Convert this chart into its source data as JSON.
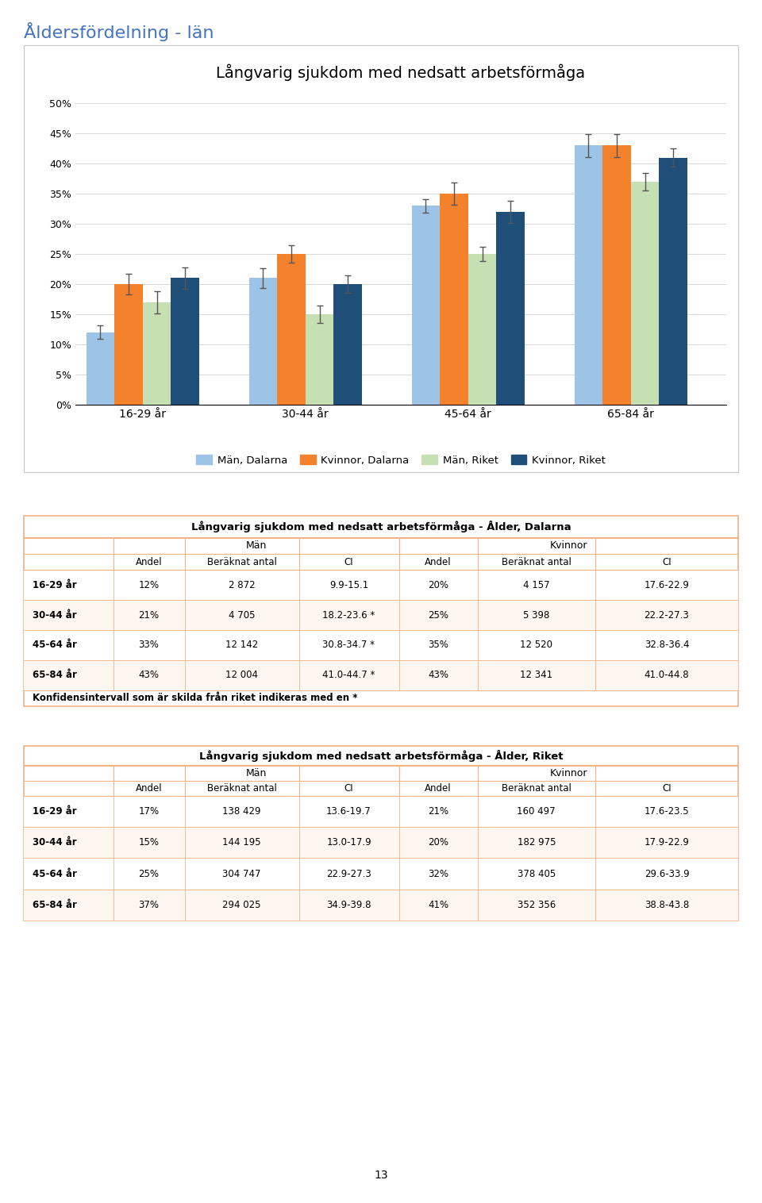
{
  "page_title": "Åldersfördelning - län",
  "chart_title": "Långvarig sjukdom med nedsatt arbetsförmåga",
  "age_groups": [
    "16-29 år",
    "30-44 år",
    "45-64 år",
    "65-84 år"
  ],
  "series": [
    {
      "label": "Män, Dalarna",
      "color": "#9dc3e6",
      "values": [
        12,
        21,
        33,
        43
      ]
    },
    {
      "label": "Kvinnor, Dalarna",
      "color": "#f4812b",
      "values": [
        20,
        25,
        35,
        43
      ]
    },
    {
      "label": "Män, Riket",
      "color": "#c6e0b4",
      "values": [
        17,
        15,
        25,
        37
      ]
    },
    {
      "label": "Kvinnor, Riket",
      "color": "#1f4e79",
      "values": [
        21,
        20,
        32,
        41
      ]
    }
  ],
  "error_bars": {
    "Män, Dalarna": {
      "lo": [
        1.1,
        1.6,
        1.1,
        1.9
      ],
      "hi": [
        1.1,
        1.6,
        1.1,
        1.9
      ]
    },
    "Kvinnor, Dalarna": {
      "lo": [
        1.7,
        1.4,
        1.8,
        1.9
      ],
      "hi": [
        1.7,
        1.4,
        1.8,
        1.9
      ]
    },
    "Män, Riket": {
      "lo": [
        1.8,
        1.5,
        1.2,
        1.5
      ],
      "hi": [
        1.8,
        1.5,
        1.2,
        1.5
      ]
    },
    "Kvinnor, Riket": {
      "lo": [
        1.8,
        1.5,
        1.8,
        1.5
      ],
      "hi": [
        1.8,
        1.5,
        1.8,
        1.5
      ]
    }
  },
  "yticks": [
    0,
    5,
    10,
    15,
    20,
    25,
    30,
    35,
    40,
    45,
    50
  ],
  "ytick_labels": [
    "0%",
    "5%",
    "10%",
    "15%",
    "20%",
    "25%",
    "30%",
    "35%",
    "40%",
    "45%",
    "50%"
  ],
  "table1_title": "Långvarig sjukdom med nedsatt arbetsförmåga - Ålder, Dalarna",
  "table2_title": "Långvarig sjukdom med nedsatt arbetsförmåga - Ålder, Riket",
  "table1_rows": [
    [
      "16-29 år",
      "12%",
      "2 872",
      "9.9-15.1",
      "20%",
      "4 157",
      "17.6-22.9"
    ],
    [
      "30-44 år",
      "21%",
      "4 705",
      "18.2-23.6 *",
      "25%",
      "5 398",
      "22.2-27.3"
    ],
    [
      "45-64 år",
      "33%",
      "12 142",
      "30.8-34.7 *",
      "35%",
      "12 520",
      "32.8-36.4"
    ],
    [
      "65-84 år",
      "43%",
      "12 004",
      "41.0-44.7 *",
      "43%",
      "12 341",
      "41.0-44.8"
    ]
  ],
  "table1_footnote": "Konfidensintervall som är skilda från riket indikeras med en *",
  "table2_rows": [
    [
      "16-29 år",
      "17%",
      "138 429",
      "13.6-19.7",
      "21%",
      "160 497",
      "17.6-23.5"
    ],
    [
      "30-44 år",
      "15%",
      "144 195",
      "13.0-17.9",
      "20%",
      "182 975",
      "17.9-22.9"
    ],
    [
      "45-64 år",
      "25%",
      "304 747",
      "22.9-27.3",
      "32%",
      "378 405",
      "29.6-33.9"
    ],
    [
      "65-84 år",
      "37%",
      "294 025",
      "34.9-39.8",
      "41%",
      "352 356",
      "38.8-43.8"
    ]
  ],
  "table_border_color": "#f4b183",
  "page_number": "13",
  "chart_box_color": "#c8c8c8",
  "grid_color": "#d9d9d9"
}
